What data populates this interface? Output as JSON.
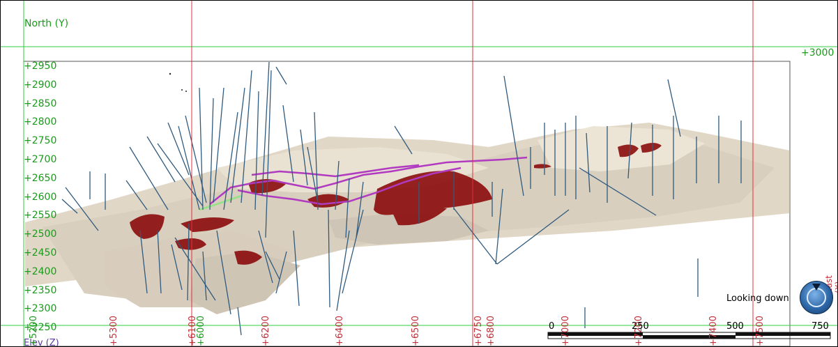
{
  "axes": {
    "north_label": "North (Y)",
    "elev_label": "Elev (Z)",
    "east_label": "East (X)",
    "grid_label_3000": "+3000 N",
    "y_ticks": [
      "+2950",
      "+2900",
      "+2850",
      "+2800",
      "+2750",
      "+2700",
      "+2650",
      "+2600",
      "+2550",
      "+2500",
      "+2450",
      "+2400",
      "+2350",
      "+2300",
      "+2250"
    ],
    "x_ticks_red": [
      "+5300",
      "+6200",
      "+6400",
      "+6500",
      "+6750",
      "+6800",
      "+7000",
      "+7400",
      "+7500"
    ],
    "x_ticks_green": [
      "+5200",
      "+6000",
      "+7200"
    ],
    "partial_ticks": [
      "+6100"
    ]
  },
  "view": {
    "orientation_label": "Looking down",
    "compass_icon": "compass-icon"
  },
  "scale_bar": {
    "labels": [
      "0",
      "250",
      "500",
      "750"
    ]
  },
  "colors": {
    "grid_green": "#2ecc40",
    "grid_red": "#e0303a",
    "surface_tan": "#c9b89a",
    "orebody_red": "#8b0d0d",
    "workings_magenta": "#b03ac0",
    "drillhole_blue": "#2f5a7e"
  }
}
